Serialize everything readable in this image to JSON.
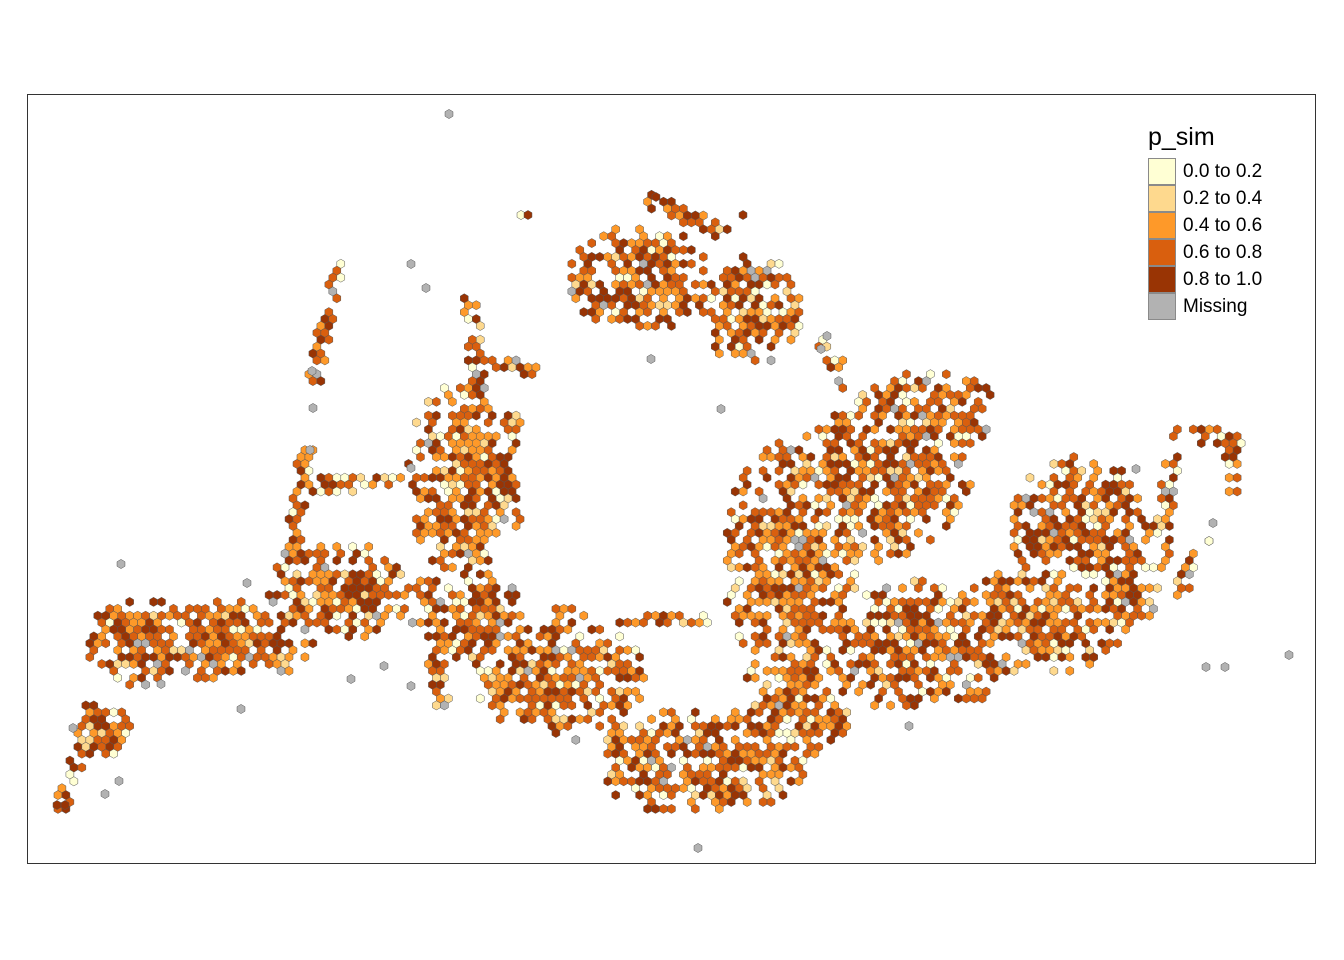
{
  "legend": {
    "title": "p_sim",
    "items": [
      {
        "label": "0.0 to 0.2",
        "color": "#ffffd4"
      },
      {
        "label": "0.2 to 0.4",
        "color": "#fed98e"
      },
      {
        "label": "0.4 to 0.6",
        "color": "#fe9929"
      },
      {
        "label": "0.6 to 0.8",
        "color": "#d95f0e"
      },
      {
        "label": "0.8 to 1.0",
        "color": "#993404"
      },
      {
        "label": "Missing",
        "color": "#b2b2b2"
      }
    ]
  },
  "map": {
    "variable": "p_sim",
    "hex_border_color": "#555555"
  }
}
